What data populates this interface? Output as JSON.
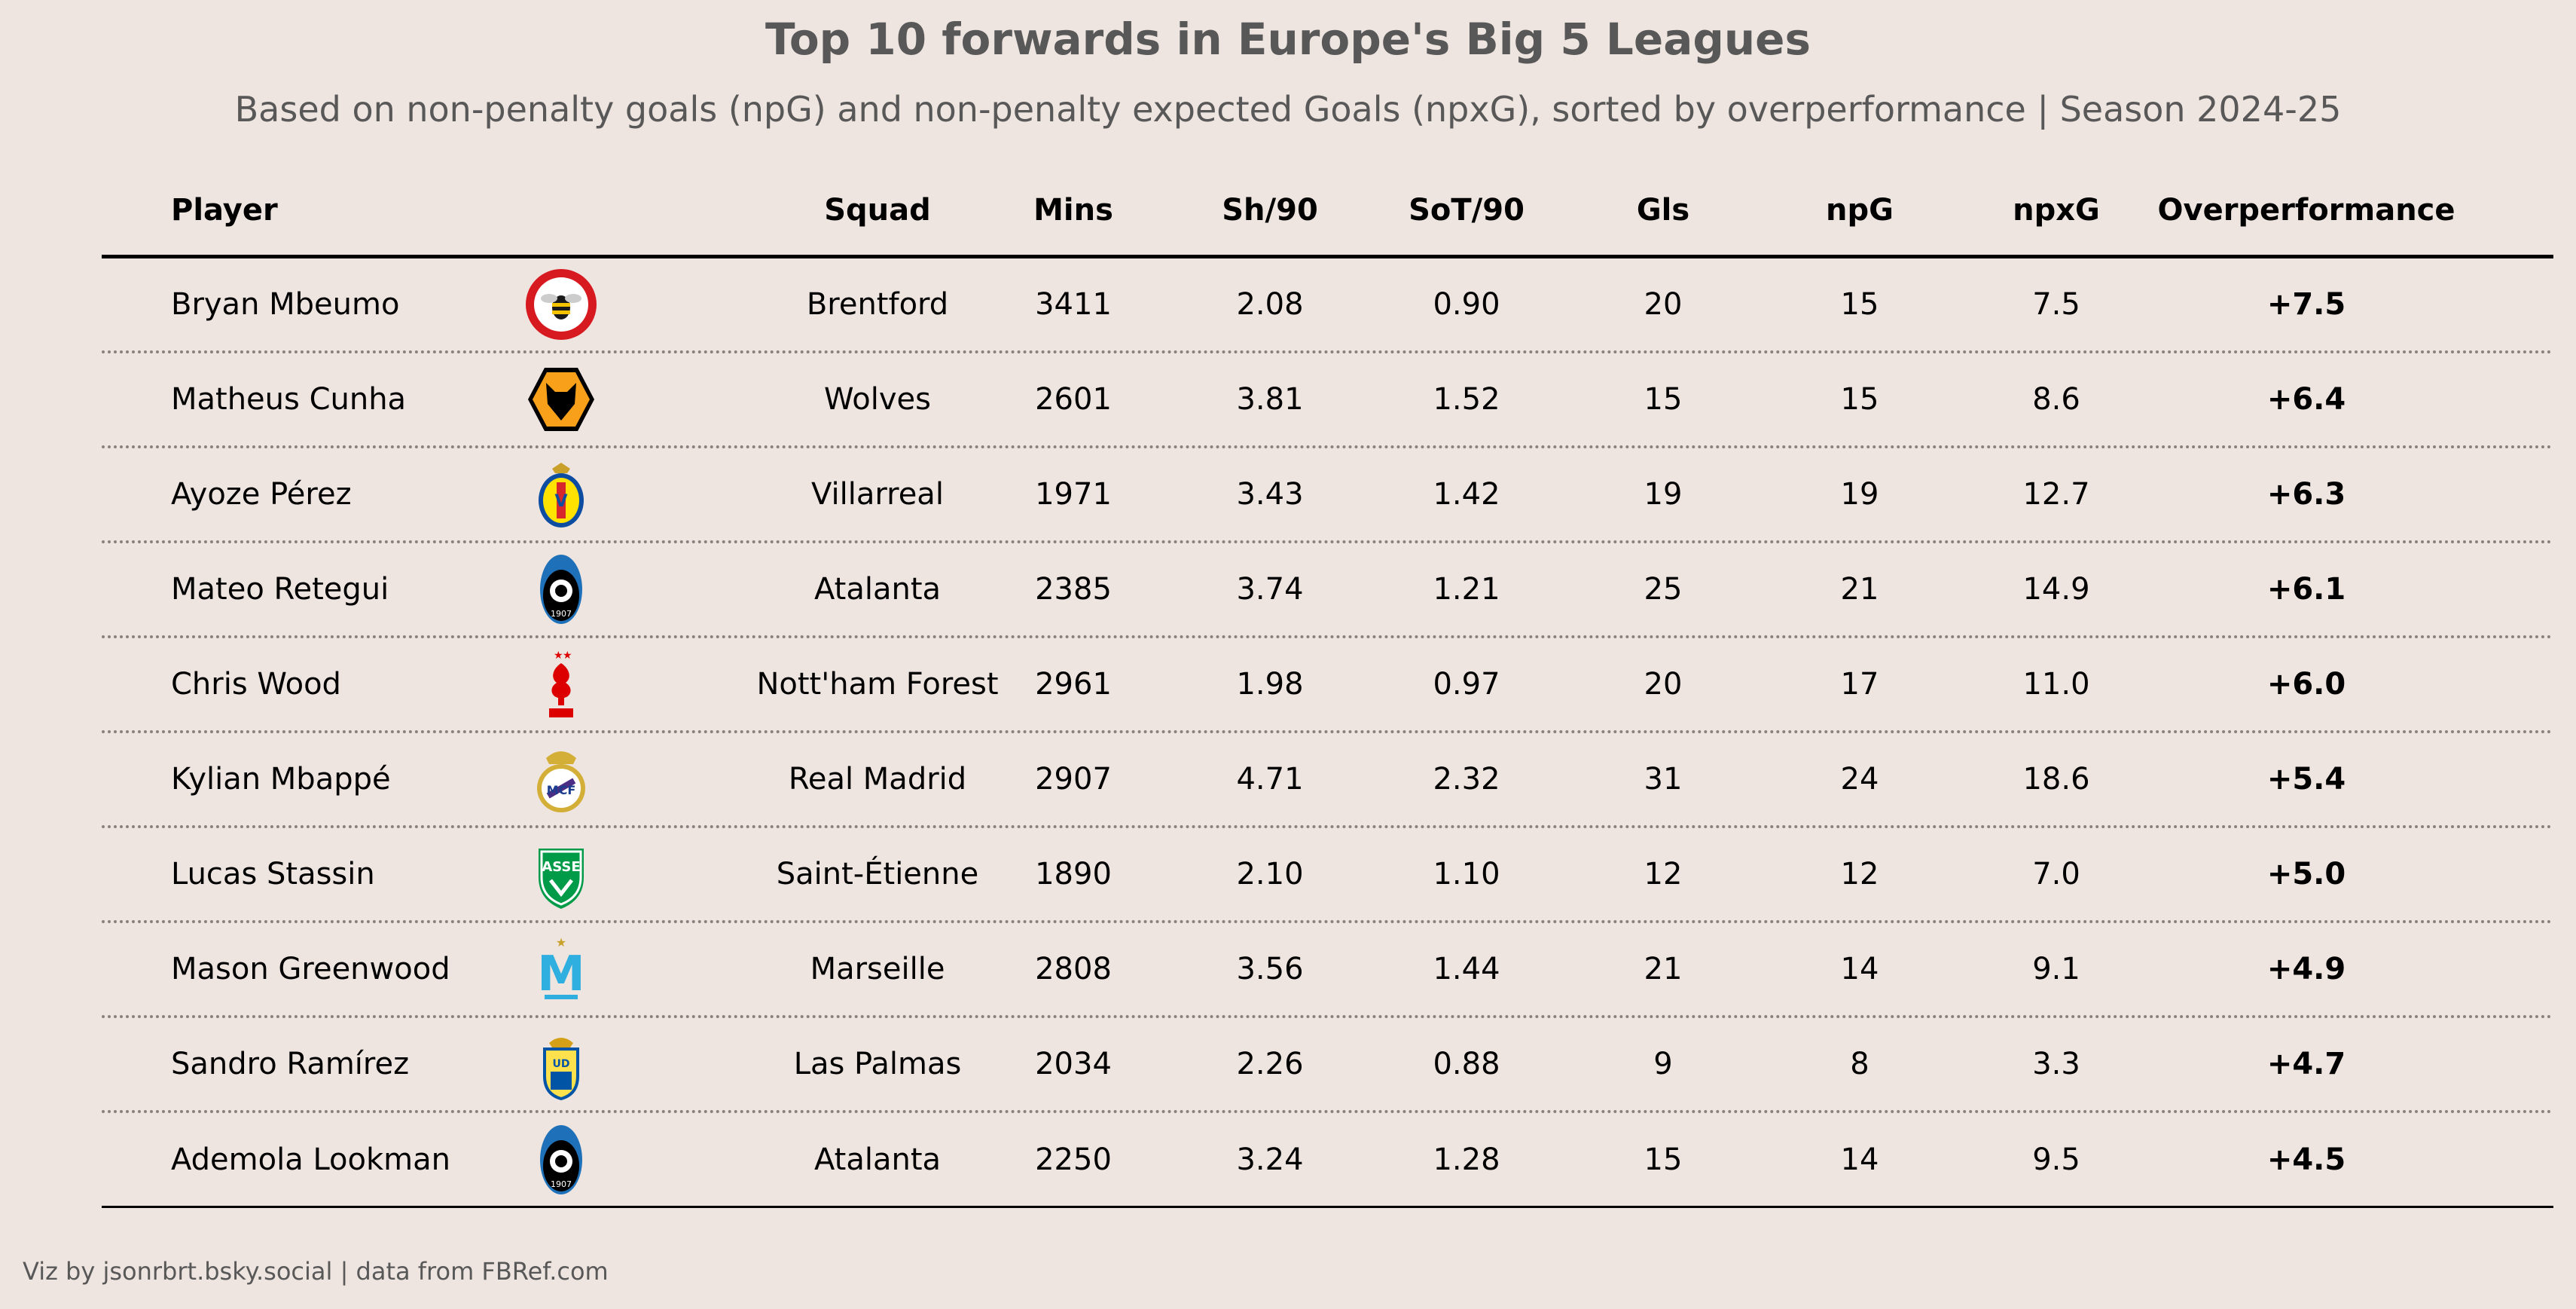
{
  "title": "Top 10 forwards in Europe's Big 5 Leagues",
  "subtitle": "Based on non-penalty goals (npG) and non-penalty expected Goals (npxG), sorted by overperformance | Season 2024-25",
  "footer": "Viz by jsonrbrt.bsky.social | data from FBRef.com",
  "chart_data": {
    "type": "table",
    "columns": [
      "Player",
      "Squad",
      "Mins",
      "Sh/90",
      "SoT/90",
      "Gls",
      "npG",
      "npxG",
      "Overperformance"
    ],
    "rows": [
      {
        "player": "Bryan Mbeumo",
        "crest": "brentford-crest-icon",
        "squad": "Brentford",
        "mins": "3411",
        "sh90": "2.08",
        "sot90": "0.90",
        "gls": "20",
        "npg": "15",
        "npxg": "7.5",
        "over": "+7.5"
      },
      {
        "player": "Matheus Cunha",
        "crest": "wolves-crest-icon",
        "squad": "Wolves",
        "mins": "2601",
        "sh90": "3.81",
        "sot90": "1.52",
        "gls": "15",
        "npg": "15",
        "npxg": "8.6",
        "over": "+6.4"
      },
      {
        "player": "Ayoze Pérez",
        "crest": "villarreal-crest-icon",
        "squad": "Villarreal",
        "mins": "1971",
        "sh90": "3.43",
        "sot90": "1.42",
        "gls": "19",
        "npg": "19",
        "npxg": "12.7",
        "over": "+6.3"
      },
      {
        "player": "Mateo Retegui",
        "crest": "atalanta-crest-icon",
        "squad": "Atalanta",
        "mins": "2385",
        "sh90": "3.74",
        "sot90": "1.21",
        "gls": "25",
        "npg": "21",
        "npxg": "14.9",
        "over": "+6.1"
      },
      {
        "player": "Chris Wood",
        "crest": "nottingham-forest-crest-icon",
        "squad": "Nott'ham Forest",
        "mins": "2961",
        "sh90": "1.98",
        "sot90": "0.97",
        "gls": "20",
        "npg": "17",
        "npxg": "11.0",
        "over": "+6.0"
      },
      {
        "player": "Kylian Mbappé",
        "crest": "real-madrid-crest-icon",
        "squad": "Real Madrid",
        "mins": "2907",
        "sh90": "4.71",
        "sot90": "2.32",
        "gls": "31",
        "npg": "24",
        "npxg": "18.6",
        "over": "+5.4"
      },
      {
        "player": "Lucas Stassin",
        "crest": "saint-etienne-crest-icon",
        "squad": "Saint-Étienne",
        "mins": "1890",
        "sh90": "2.10",
        "sot90": "1.10",
        "gls": "12",
        "npg": "12",
        "npxg": "7.0",
        "over": "+5.0"
      },
      {
        "player": "Mason Greenwood",
        "crest": "marseille-crest-icon",
        "squad": "Marseille",
        "mins": "2808",
        "sh90": "3.56",
        "sot90": "1.44",
        "gls": "21",
        "npg": "14",
        "npxg": "9.1",
        "over": "+4.9"
      },
      {
        "player": "Sandro Ramírez",
        "crest": "las-palmas-crest-icon",
        "squad": "Las Palmas",
        "mins": "2034",
        "sh90": "2.26",
        "sot90": "0.88",
        "gls": "9",
        "npg": "8",
        "npxg": "3.3",
        "over": "+4.7"
      },
      {
        "player": "Ademola Lookman",
        "crest": "atalanta-crest-icon",
        "squad": "Atalanta",
        "mins": "2250",
        "sh90": "3.24",
        "sot90": "1.28",
        "gls": "15",
        "npg": "14",
        "npxg": "9.5",
        "over": "+4.5"
      }
    ]
  }
}
